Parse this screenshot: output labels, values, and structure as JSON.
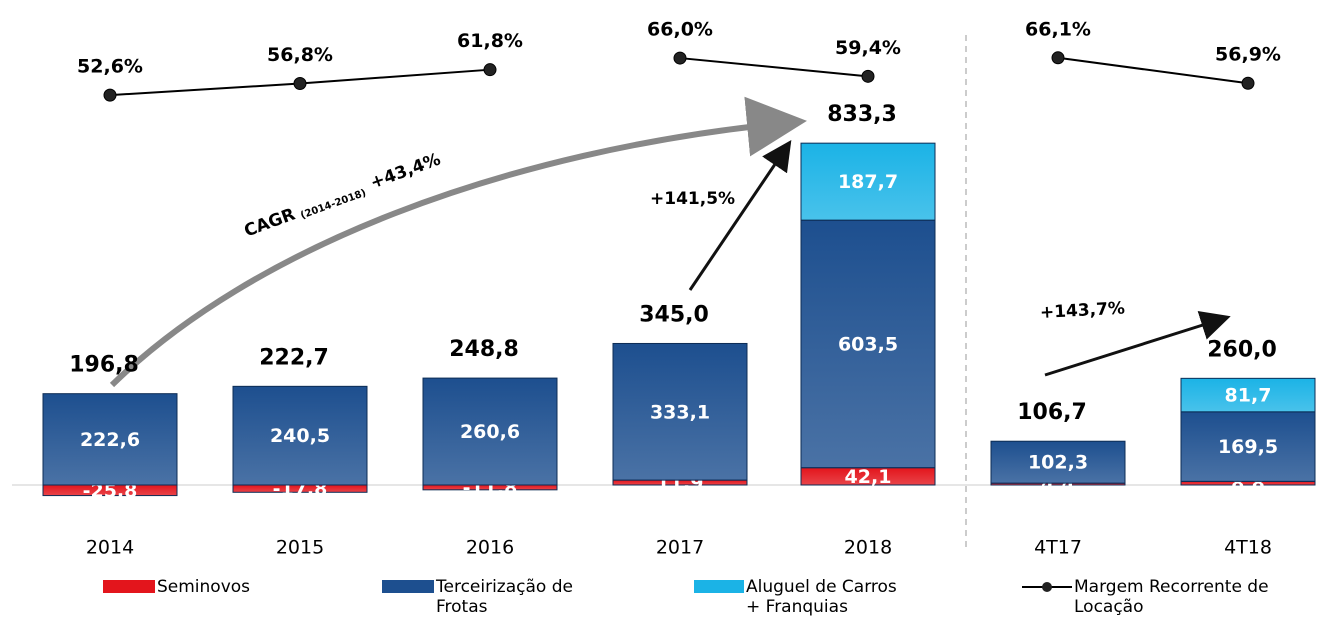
{
  "chart_data": {
    "type": "bar",
    "stacked": true,
    "categories": [
      "2014",
      "2015",
      "2016",
      "2017",
      "2018",
      "4T17",
      "4T18"
    ],
    "ylim": [
      -40,
      880
    ],
    "y2lim": [
      40,
      70
    ],
    "series": [
      {
        "name": "Seminovos",
        "color": "#e3151c",
        "values": [
          -25.8,
          -17.8,
          -11.8,
          11.9,
          42.1,
          4.4,
          8.8
        ],
        "value_labels": [
          "-25,8",
          "-17,8",
          "-11,8",
          "11,9",
          "42,1",
          "4,4",
          "8,8"
        ]
      },
      {
        "name": "Terceirização de Frotas",
        "color": "#1d4f8f",
        "values": [
          222.6,
          240.5,
          260.6,
          333.1,
          603.5,
          102.3,
          169.5
        ],
        "value_labels": [
          "222,6",
          "240,5",
          "260,6",
          "333,1",
          "603,5",
          "102,3",
          "169,5"
        ]
      },
      {
        "name": "Aluguel de Carros + Franquias",
        "color": "#1bb3e6",
        "values": [
          null,
          null,
          null,
          null,
          187.7,
          null,
          81.7
        ],
        "value_labels": [
          null,
          null,
          null,
          null,
          "187,7",
          null,
          "81,7"
        ]
      },
      {
        "name": "Margem Recorrente de Locação",
        "type": "line",
        "axis": "y2",
        "color": "#000000",
        "values": [
          52.6,
          56.8,
          61.8,
          66.0,
          59.4,
          66.1,
          56.9
        ],
        "value_labels": [
          "52,6%",
          "56,8%",
          "61,8%",
          "66,0%",
          "59,4%",
          "66,1%",
          "56,9%"
        ]
      }
    ],
    "totals": {
      "values": [
        196.8,
        222.7,
        248.8,
        345.0,
        833.3,
        106.7,
        260.0
      ],
      "value_labels": [
        "196,8",
        "222,7",
        "248,8",
        "345,0",
        "833,3",
        "106,7",
        "260,0"
      ]
    },
    "annotations": [
      "CAGR",
      "(2014-2018)",
      "+43,4%",
      "+141,5%",
      "+143,7%"
    ]
  }
}
